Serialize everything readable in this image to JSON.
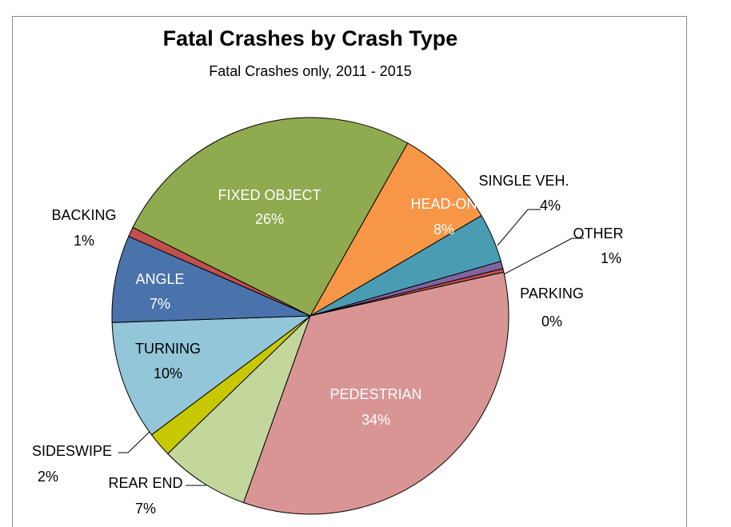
{
  "chart_data": {
    "type": "pie",
    "title": "Fatal Crashes by Crash Type",
    "subtitle": "Fatal Crashes only, 2011 - 2015",
    "categories": [
      "HEAD-ON",
      "SINGLE VEH.",
      "OTHER",
      "PARKING",
      "PEDESTRIAN",
      "REAR END",
      "SIDESWIPE",
      "TURNING",
      "ANGLE",
      "BACKING",
      "FIXED OBJECT"
    ],
    "values": [
      8.4,
      4.0,
      0.6,
      0.3,
      34.0,
      7.3,
      2.0,
      9.7,
      7.1,
      0.8,
      25.8
    ],
    "value_labels": [
      "8%",
      "4%",
      "1%",
      "0%",
      "34%",
      "7%",
      "2%",
      "10%",
      "7%",
      "1%",
      "26%"
    ],
    "colors": [
      "#f79646",
      "#4a9cb2",
      "#8064a2",
      "#c0504d",
      "#d99594",
      "#c3d69b",
      "#c8c800",
      "#93c6d9",
      "#4a72ab",
      "#c0504d",
      "#8faa4f"
    ]
  }
}
